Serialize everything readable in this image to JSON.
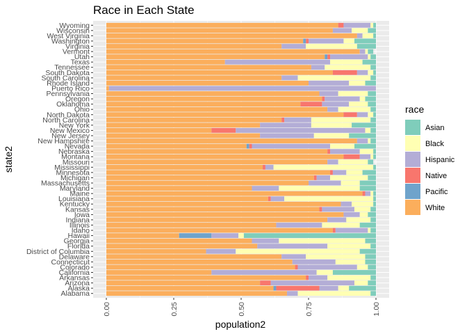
{
  "chart_data": {
    "type": "bar",
    "orientation": "horizontal",
    "stacked": true,
    "title": "Race in Each State",
    "xlabel": "population2",
    "ylabel": "state2",
    "xlim": [
      0,
      1
    ],
    "x_ticks": [
      "0.00",
      "0.25",
      "0.50",
      "0.75",
      "1.00"
    ],
    "grid": true,
    "legend": {
      "title": "race",
      "position": "right"
    },
    "series_order": [
      "White",
      "Pacific",
      "Native",
      "Hispanic",
      "Black",
      "Asian"
    ],
    "legend_order": [
      "Asian",
      "Black",
      "Hispanic",
      "Native",
      "Pacific",
      "White"
    ],
    "colors": {
      "Asian": "#7FCDBB",
      "Black": "#FFFFB3",
      "Hispanic": "#B3ADD6",
      "Native": "#F8766D",
      "Pacific": "#6FA3CB",
      "White": "#FBAE5C"
    },
    "categories": [
      "Alabama",
      "Alaska",
      "Arizona",
      "Arkansas",
      "California",
      "Colorado",
      "Connecticut",
      "Delaware",
      "District of Columbia",
      "Florida",
      "Georgia",
      "Hawaii",
      "Idaho",
      "Illinois",
      "Indiana",
      "Iowa",
      "Kansas",
      "Kentucky",
      "Louisiana",
      "Maine",
      "Maryland",
      "Massachusetts",
      "Michigan",
      "Minnesota",
      "Mississippi",
      "Missouri",
      "Montana",
      "Nebraska",
      "Nevada",
      "New Hampshire",
      "New Jersey",
      "New Mexico",
      "New York",
      "North Carolina",
      "North Dakota",
      "Ohio",
      "Oklahoma",
      "Oregon",
      "Pennsylvania",
      "Puerto Rico",
      "Rhode Island",
      "South Carolina",
      "South Dakota",
      "Tennessee",
      "Texas",
      "Utah",
      "Vermont",
      "Virginia",
      "Washington",
      "West Virginia",
      "Wisconsin",
      "Wyoming"
    ],
    "series": [
      {
        "name": "White",
        "values": [
          0.67,
          0.62,
          0.57,
          0.74,
          0.39,
          0.7,
          0.69,
          0.65,
          0.37,
          0.56,
          0.54,
          0.27,
          0.84,
          0.63,
          0.82,
          0.88,
          0.79,
          0.87,
          0.6,
          0.95,
          0.54,
          0.75,
          0.77,
          0.83,
          0.58,
          0.82,
          0.88,
          0.82,
          0.52,
          0.93,
          0.57,
          0.39,
          0.57,
          0.65,
          0.88,
          0.82,
          0.72,
          0.8,
          0.79,
          0.01,
          0.75,
          0.65,
          0.84,
          0.76,
          0.44,
          0.81,
          0.94,
          0.65,
          0.73,
          0.93,
          0.84,
          0.86
        ]
      },
      {
        "name": "Pacific",
        "values": [
          0.0,
          0.01,
          0.0,
          0.0,
          0.0,
          0.0,
          0.0,
          0.0,
          0.0,
          0.0,
          0.0,
          0.12,
          0.0,
          0.0,
          0.0,
          0.0,
          0.0,
          0.0,
          0.0,
          0.0,
          0.0,
          0.0,
          0.0,
          0.0,
          0.0,
          0.0,
          0.0,
          0.0,
          0.01,
          0.0,
          0.0,
          0.0,
          0.0,
          0.0,
          0.0,
          0.0,
          0.0,
          0.0,
          0.0,
          0.0,
          0.0,
          0.0,
          0.0,
          0.0,
          0.0,
          0.01,
          0.0,
          0.0,
          0.01,
          0.0,
          0.0,
          0.0
        ]
      },
      {
        "name": "Native",
        "values": [
          0.0,
          0.16,
          0.04,
          0.01,
          0.0,
          0.01,
          0.0,
          0.0,
          0.0,
          0.0,
          0.0,
          0.0,
          0.01,
          0.0,
          0.0,
          0.0,
          0.01,
          0.0,
          0.01,
          0.01,
          0.0,
          0.0,
          0.01,
          0.01,
          0.01,
          0.0,
          0.06,
          0.01,
          0.01,
          0.0,
          0.0,
          0.09,
          0.0,
          0.01,
          0.05,
          0.0,
          0.08,
          0.01,
          0.0,
          0.0,
          0.0,
          0.0,
          0.09,
          0.0,
          0.0,
          0.01,
          0.0,
          0.0,
          0.01,
          0.0,
          0.0,
          0.02
        ]
      },
      {
        "name": "Hispanic",
        "values": [
          0.04,
          0.07,
          0.31,
          0.07,
          0.39,
          0.22,
          0.16,
          0.09,
          0.11,
          0.26,
          0.1,
          0.1,
          0.12,
          0.17,
          0.07,
          0.06,
          0.12,
          0.04,
          0.05,
          0.02,
          0.1,
          0.12,
          0.05,
          0.05,
          0.03,
          0.04,
          0.04,
          0.11,
          0.29,
          0.04,
          0.2,
          0.48,
          0.19,
          0.1,
          0.04,
          0.04,
          0.1,
          0.13,
          0.07,
          0.99,
          0.15,
          0.06,
          0.04,
          0.05,
          0.39,
          0.14,
          0.02,
          0.09,
          0.13,
          0.02,
          0.07,
          0.1
        ]
      },
      {
        "name": "Black",
        "values": [
          0.27,
          0.04,
          0.05,
          0.16,
          0.06,
          0.04,
          0.11,
          0.22,
          0.46,
          0.16,
          0.32,
          0.02,
          0.01,
          0.14,
          0.09,
          0.03,
          0.06,
          0.08,
          0.33,
          0.01,
          0.3,
          0.07,
          0.14,
          0.06,
          0.37,
          0.11,
          0.01,
          0.05,
          0.09,
          0.01,
          0.13,
          0.02,
          0.15,
          0.22,
          0.02,
          0.12,
          0.07,
          0.02,
          0.11,
          0.0,
          0.06,
          0.27,
          0.02,
          0.17,
          0.12,
          0.01,
          0.01,
          0.19,
          0.04,
          0.04,
          0.06,
          0.01
        ]
      },
      {
        "name": "Asian",
        "values": [
          0.02,
          0.1,
          0.03,
          0.02,
          0.16,
          0.03,
          0.04,
          0.04,
          0.06,
          0.02,
          0.04,
          0.49,
          0.02,
          0.06,
          0.02,
          0.03,
          0.02,
          0.01,
          0.01,
          0.01,
          0.06,
          0.06,
          0.03,
          0.05,
          0.01,
          0.02,
          0.01,
          0.01,
          0.08,
          0.02,
          0.1,
          0.02,
          0.09,
          0.02,
          0.01,
          0.02,
          0.03,
          0.04,
          0.03,
          0.0,
          0.04,
          0.02,
          0.01,
          0.02,
          0.05,
          0.02,
          0.02,
          0.07,
          0.08,
          0.01,
          0.03,
          0.01
        ]
      }
    ]
  }
}
